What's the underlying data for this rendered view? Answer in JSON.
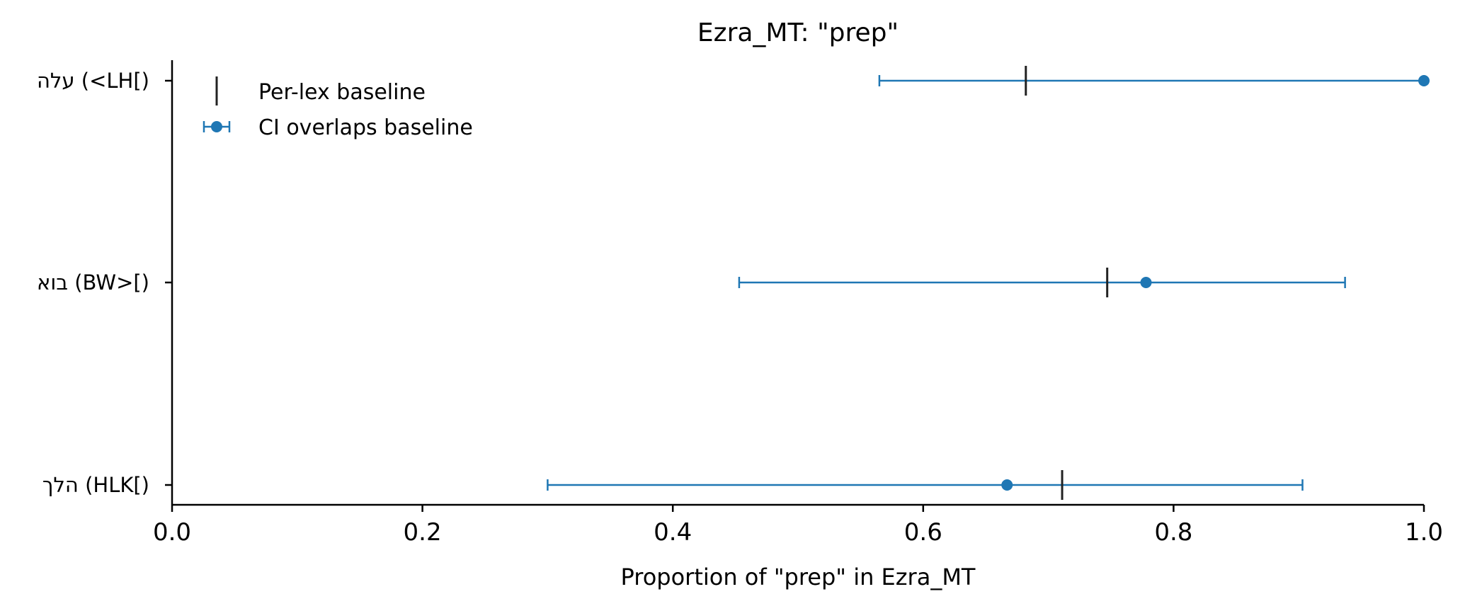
{
  "chart_data": {
    "type": "scatter",
    "title": "Ezra_MT: \"prep\"",
    "xlabel": "Proportion of \"prep\" in Ezra_MT",
    "ylabel": "",
    "xlim": [
      0.0,
      1.0
    ],
    "xticks": [
      "0.0",
      "0.2",
      "0.4",
      "0.6",
      "0.8",
      "1.0"
    ],
    "categories": [
      "עלה (<LH[)",
      "בוא (BW>[)",
      "הלך (HLK[)"
    ],
    "series": [
      {
        "name": "CI overlaps baseline",
        "color": "#1f77b4",
        "values": [
          1.0,
          0.778,
          0.667
        ],
        "ci_low": [
          0.565,
          0.453,
          0.3
        ],
        "ci_high": [
          1.0,
          0.937,
          0.903
        ]
      },
      {
        "name": "Per-lex baseline",
        "color": "#222222",
        "values": [
          0.682,
          0.747,
          0.711
        ]
      }
    ],
    "legend": {
      "placement": "top-left",
      "entries": [
        "Per-lex baseline",
        "CI overlaps baseline"
      ]
    },
    "grid": false
  }
}
